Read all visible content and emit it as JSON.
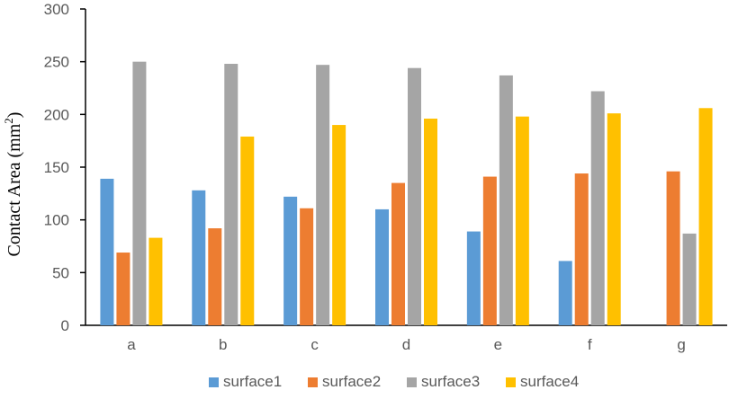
{
  "chart_data": {
    "type": "bar",
    "title": "",
    "xlabel": "",
    "ylabel": {
      "text": "Contact Area (mm",
      "superscript": "2",
      "suffix": ")"
    },
    "ylim": [
      0,
      300
    ],
    "yticks": [
      0,
      50,
      100,
      150,
      200,
      250,
      300
    ],
    "categories": [
      "a",
      "b",
      "c",
      "d",
      "e",
      "f",
      "g"
    ],
    "series": [
      {
        "name": "surface1",
        "color": "#5B9BD5",
        "values": [
          139,
          128,
          122,
          110,
          89,
          61,
          null
        ]
      },
      {
        "name": "surface2",
        "color": "#ED7D31",
        "values": [
          69,
          92,
          111,
          135,
          141,
          144,
          146
        ]
      },
      {
        "name": "surface3",
        "color": "#A5A5A5",
        "values": [
          250,
          248,
          247,
          244,
          237,
          222,
          87
        ]
      },
      {
        "name": "surface4",
        "color": "#FFC000",
        "values": [
          83,
          179,
          190,
          196,
          198,
          201,
          206
        ]
      }
    ],
    "grid": false,
    "legend_position": "bottom"
  }
}
